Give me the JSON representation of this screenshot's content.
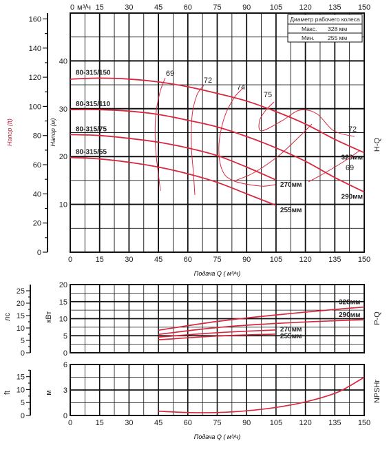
{
  "chart_data": [
    {
      "type": "line",
      "name": "H-Q",
      "panel_label": "H-Q",
      "xlabel": "Подача Q ( м³/ч)",
      "xlim": [
        0,
        150
      ],
      "x_ticks": [
        0,
        15,
        30,
        45,
        60,
        75,
        90,
        105,
        120,
        135,
        150
      ],
      "top_axis_prefix": "м³/ч",
      "ylabel_m": "Напор (м)",
      "ylabel_ft": "Напор (ft)",
      "ylim_m": [
        0,
        50
      ],
      "ylim_ft": [
        0,
        164
      ],
      "y_ticks_m": [
        10,
        20,
        30,
        40
      ],
      "y_ticks_ft": [
        0,
        20,
        40,
        60,
        80,
        100,
        120,
        140,
        160
      ],
      "legend": {
        "title": "Диаметр рабочего колеса",
        "rows": [
          {
            "label": "Макс.",
            "value": "328 мм"
          },
          {
            "label": "Мин.",
            "value": "255 мм"
          }
        ],
        "placement": "top-right"
      },
      "series": [
        {
          "name": "80-315/150",
          "end_label": "328мм",
          "x": [
            0,
            15,
            30,
            45,
            60,
            75,
            90,
            105,
            120,
            135,
            150
          ],
          "y": [
            36.2,
            36.4,
            36.2,
            35.6,
            34.6,
            33.2,
            31.6,
            29.4,
            26.8,
            23.6,
            20.8
          ]
        },
        {
          "name": "80-315/110",
          "end_label": "290мм",
          "x": [
            0,
            15,
            30,
            45,
            60,
            75,
            90,
            105,
            120,
            135,
            150
          ],
          "y": [
            29.8,
            29.8,
            29.5,
            28.8,
            27.6,
            26.2,
            24.2,
            21.8,
            19.0,
            15.6,
            12.6
          ]
        },
        {
          "name": "80-315/75",
          "end_label": "270мм",
          "x": [
            0,
            15,
            30,
            45,
            60,
            75,
            90,
            105
          ],
          "y": [
            24.6,
            24.4,
            23.8,
            23.0,
            21.8,
            20.2,
            17.8,
            15.1
          ]
        },
        {
          "name": "80-315/55",
          "end_label": "255мм",
          "x": [
            0,
            15,
            30,
            45,
            60,
            75,
            90,
            105
          ],
          "y": [
            19.8,
            19.5,
            18.8,
            17.8,
            16.4,
            14.6,
            12.2,
            9.8
          ]
        }
      ],
      "efficiency_labels": [
        "69",
        "72",
        "74",
        "75",
        "72",
        "69"
      ]
    },
    {
      "type": "line",
      "name": "P-Q",
      "panel_label": "P-Q",
      "ylabel_kw": "кВт",
      "ylabel_hp": "лс",
      "ylim_kw": [
        0,
        20
      ],
      "y_ticks_kw": [
        0,
        5,
        10,
        15,
        20
      ],
      "y_ticks_hp": [
        0,
        5,
        10,
        15,
        20,
        25
      ],
      "series": [
        {
          "name": "328мм",
          "x": [
            45,
            75,
            105,
            135,
            150
          ],
          "y": [
            6.6,
            9.2,
            11.1,
            12.7,
            13.4
          ]
        },
        {
          "name": "290мм",
          "x": [
            45,
            75,
            105,
            135,
            150
          ],
          "y": [
            5.4,
            7.4,
            8.6,
            9.4,
            9.7
          ]
        },
        {
          "name": "270мм",
          "x": [
            45,
            75,
            105
          ],
          "y": [
            4.6,
            5.9,
            6.7
          ]
        },
        {
          "name": "255мм",
          "x": [
            45,
            75,
            105
          ],
          "y": [
            3.8,
            4.9,
            5.5
          ]
        }
      ]
    },
    {
      "type": "line",
      "name": "NPSHr",
      "panel_label": "NPSHr",
      "xlabel": "Подача Q ( м³/ч)",
      "ylabel_m": "м",
      "ylabel_ft": "ft",
      "ylim_m": [
        0,
        6
      ],
      "y_ticks_m": [
        0,
        3,
        6
      ],
      "y_ticks_ft": [
        0,
        5,
        10,
        15
      ],
      "series": [
        {
          "name": "NPSHr",
          "x": [
            45,
            60,
            75,
            90,
            105,
            120,
            135,
            142,
            150
          ],
          "y": [
            0.5,
            0.35,
            0.35,
            0.55,
            0.95,
            1.6,
            2.6,
            3.4,
            4.5
          ]
        }
      ]
    }
  ]
}
